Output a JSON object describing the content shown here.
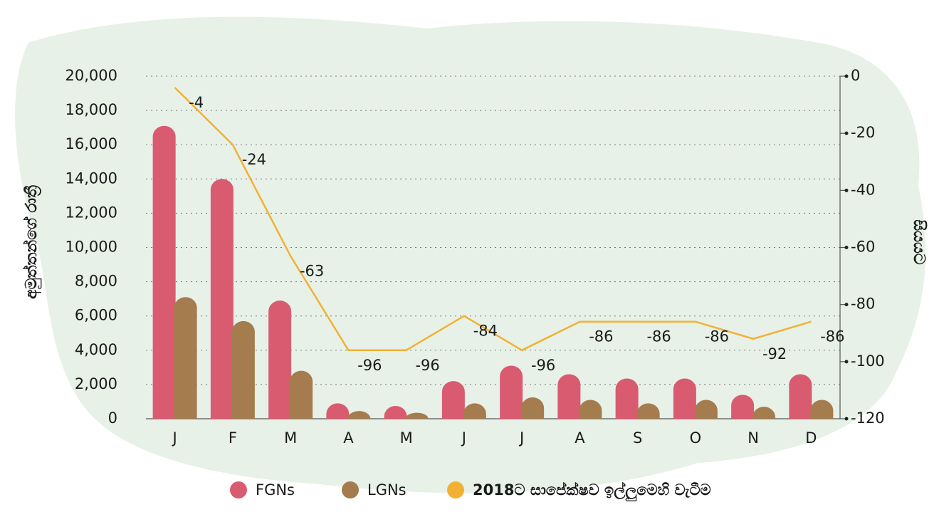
{
  "chart_data": {
    "type": "bar",
    "y_label": "අමුත්තන්ගේ රාත්‍රී",
    "y2_label": "සියයට",
    "categories": [
      "J",
      "F",
      "M",
      "A",
      "M",
      "J",
      "J",
      "A",
      "S",
      "O",
      "N",
      "D"
    ],
    "series": [
      {
        "name": "FGNs",
        "color": "#d95b70",
        "values": [
          17100,
          14000,
          6900,
          900,
          750,
          2200,
          3100,
          2600,
          2350,
          2350,
          1400,
          2600
        ]
      },
      {
        "name": "LGNs",
        "color": "#a47c4e",
        "values": [
          7100,
          5700,
          2800,
          450,
          350,
          900,
          1250,
          1100,
          900,
          1100,
          700,
          1100
        ]
      },
      {
        "name": "2018ට සාපේක්ෂව ඉල්ලුමෙහි වැටීම",
        "color": "#f2b134",
        "axis": "y2",
        "type": "line",
        "values": [
          -4,
          -24,
          -63,
          -96,
          -96,
          -84,
          -96,
          -86,
          -86,
          -86,
          -92,
          -86
        ]
      }
    ],
    "ylim": [
      0,
      20000
    ],
    "yticks": [
      0,
      {
        "value": 2000,
        "label": "2,000"
      },
      {
        "value": 4000,
        "label": "4,000"
      },
      {
        "value": 6000,
        "label": "6,000"
      },
      {
        "value": 8000,
        "label": "8,000"
      },
      {
        "value": 10000,
        "label": "10,000"
      },
      {
        "value": 12000,
        "label": "12,000"
      },
      {
        "value": 14000,
        "label": "14,000"
      },
      {
        "value": 16000,
        "label": "16,000"
      },
      {
        "value": 18000,
        "label": "18,000"
      },
      {
        "value": 20000,
        "label": "20,000"
      }
    ],
    "y2lim": [
      -120,
      0
    ],
    "y2ticks": [
      -120,
      -100,
      -80,
      -60,
      -40,
      -20,
      0
    ],
    "grid": true
  }
}
